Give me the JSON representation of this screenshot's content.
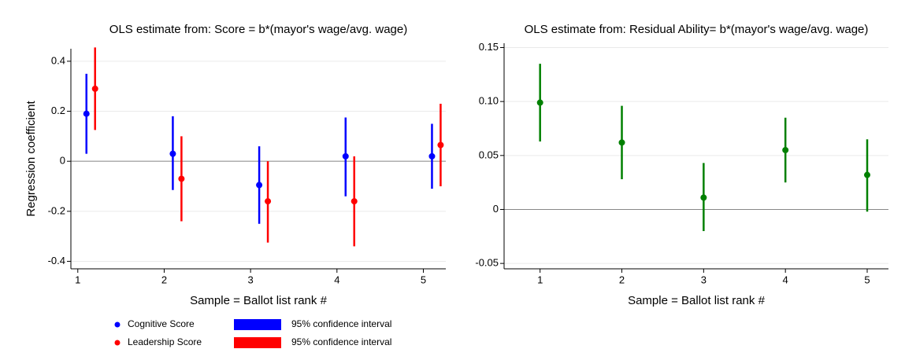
{
  "chart_data": [
    {
      "type": "errorbar",
      "title": "OLS estimate from: Score = b*(mayor's wage/avg. wage)",
      "x_label": "Sample = Ballot list rank #",
      "y_label": "Regression coefficient",
      "xlim": [
        0.92,
        5.26
      ],
      "xticks": [
        1,
        2,
        3,
        4,
        5
      ],
      "ylim": [
        -0.43,
        0.45
      ],
      "yticks": [
        -0.4,
        -0.2,
        0,
        0.2,
        0.4
      ],
      "grid": true,
      "hline": 0,
      "series": [
        {
          "name": "Cognitive Score",
          "ci_label": "95% confidence interval",
          "color": "#0000ff",
          "x": [
            1.1,
            2.1,
            3.1,
            4.1,
            5.1
          ],
          "values": [
            0.19,
            0.03,
            -0.095,
            0.02,
            0.02
          ],
          "lower": [
            0.03,
            -0.115,
            -0.25,
            -0.14,
            -0.11
          ],
          "upper": [
            0.35,
            0.18,
            0.06,
            0.175,
            0.15
          ]
        },
        {
          "name": "Leadership Score",
          "ci_label": "95% confidence interval",
          "color": "#ff0000",
          "x": [
            1.2,
            2.2,
            3.2,
            4.2,
            5.2
          ],
          "values": [
            0.29,
            -0.07,
            -0.16,
            -0.16,
            0.065
          ],
          "lower": [
            0.125,
            -0.24,
            -0.325,
            -0.34,
            -0.1
          ],
          "upper": [
            0.455,
            0.1,
            0.0,
            0.02,
            0.23
          ]
        }
      ]
    },
    {
      "type": "errorbar",
      "title": "OLS estimate from: Residual Ability= b*(mayor's wage/avg. wage)",
      "x_label": "Sample = Ballot list rank #",
      "xlim": [
        0.56,
        5.26
      ],
      "xticks": [
        1,
        2,
        3,
        4,
        5
      ],
      "ylim": [
        -0.055,
        0.154
      ],
      "yticks": [
        -0.05,
        0,
        0.05,
        {
          "value": 0.1,
          "label": "0.10"
        },
        0.15
      ],
      "grid": true,
      "hline": 0,
      "series": [
        {
          "color": "#008000",
          "x": [
            1,
            2,
            3,
            4,
            5
          ],
          "values": [
            0.099,
            0.062,
            0.011,
            0.055,
            0.032
          ],
          "lower": [
            0.063,
            0.028,
            -0.02,
            0.025,
            -0.002
          ],
          "upper": [
            0.135,
            0.096,
            0.043,
            0.085,
            0.065
          ]
        }
      ]
    }
  ]
}
